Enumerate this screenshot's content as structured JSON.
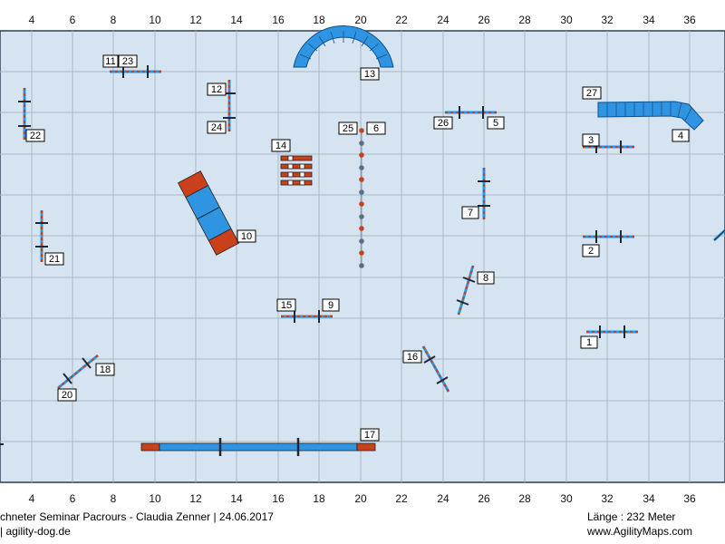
{
  "axis": {
    "x_ticks": [
      "4",
      "6",
      "8",
      "10",
      "12",
      "14",
      "16",
      "18",
      "20",
      "22",
      "24",
      "26",
      "28",
      "30",
      "32",
      "34",
      "36"
    ]
  },
  "course": {
    "obstacle_numbers": [
      "1",
      "2",
      "3",
      "4",
      "5",
      "6",
      "7",
      "8",
      "9",
      "10",
      "11",
      "12",
      "13",
      "14",
      "15",
      "16",
      "17",
      "18",
      "20",
      "21",
      "22",
      "23",
      "24",
      "25",
      "26",
      "27"
    ]
  },
  "footer": {
    "seminar": "chneter Seminar Pacrours - Claudia Zenner | 24.06.2017",
    "website": "| agility-dog.de",
    "length": "Länge : 232 Meter",
    "maps_url": "www.AgilityMaps.com"
  },
  "colors": {
    "field": "#d6e4f1",
    "grid": "#a9b6c3",
    "tunnel": "#2f95e3",
    "contact": "#c9401b",
    "bar": "#2f95e3",
    "pole": "#1b2a3a"
  }
}
